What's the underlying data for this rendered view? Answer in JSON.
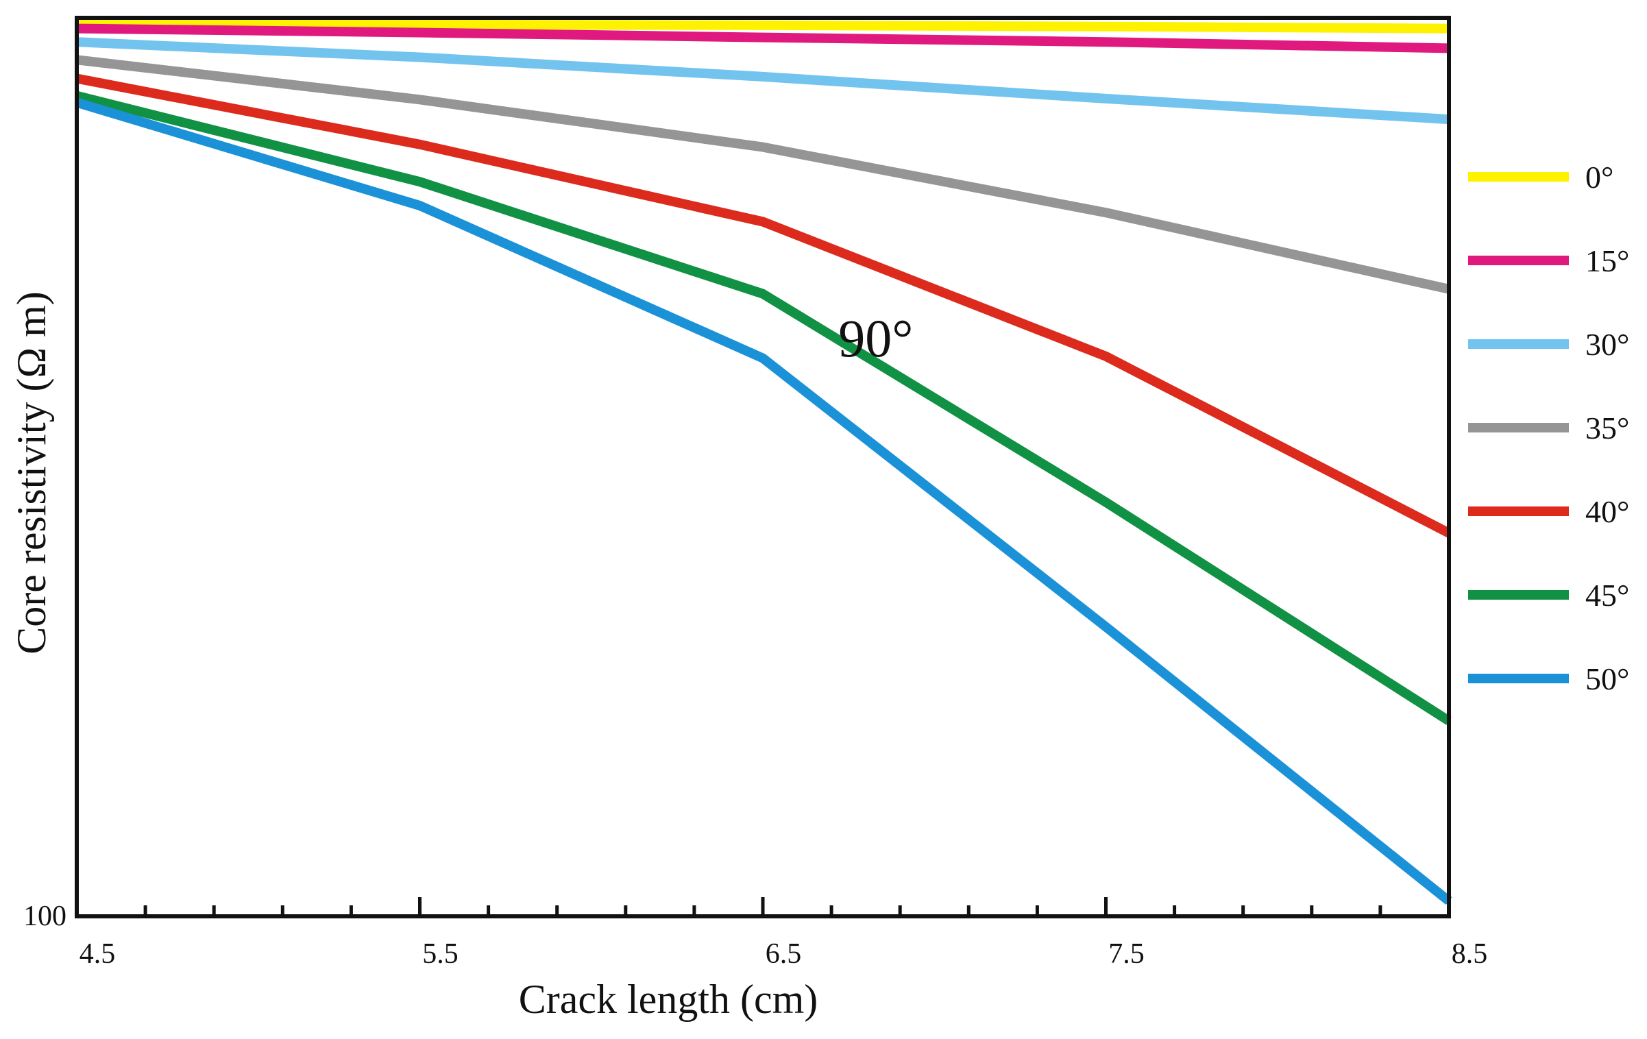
{
  "chart_data": {
    "type": "line",
    "title": "",
    "xlabel": "Crack length (cm)",
    "ylabel": "Core resistivity (Ω m)",
    "xlim": [
      4.5,
      8.5
    ],
    "ylim": [
      100,
      1000
    ],
    "xticks": [
      {
        "value": 4.5,
        "label": "4.5"
      },
      {
        "value": 5.5,
        "label": "5.5"
      },
      {
        "value": 6.5,
        "label": "6.5"
      },
      {
        "value": 7.5,
        "label": "7.5"
      },
      {
        "value": 8.5,
        "label": "8.5"
      }
    ],
    "minor_tick_step": 0.2,
    "yticks": [
      {
        "value": 100,
        "label": "100"
      }
    ],
    "grid": false,
    "legend": "right",
    "annotations": [
      {
        "text": "90°",
        "x": 6.9,
        "y": 420
      }
    ],
    "x": [
      4.5,
      5.5,
      6.5,
      7.5,
      8.5
    ],
    "series": [
      {
        "name": "0°",
        "color": "#fff200",
        "values": [
          985,
          983,
          981,
          978,
          973
        ]
      },
      {
        "name": "15°",
        "color": "#e0197f",
        "values": [
          973,
          963,
          951,
          940,
          925
        ]
      },
      {
        "name": "30°",
        "color": "#72c3ee",
        "values": [
          940,
          904,
          860,
          813,
          771
        ]
      },
      {
        "name": "35°",
        "color": "#959595",
        "values": [
          898,
          811,
          718,
          607,
          499
        ]
      },
      {
        "name": "40°",
        "color": "#dc2a1d",
        "values": [
          856,
          723,
          593,
          420,
          267
        ]
      },
      {
        "name": "45°",
        "color": "#119144",
        "values": [
          819,
          657,
          493,
          289,
          165
        ]
      },
      {
        "name": "50°",
        "color": "#1b92d8",
        "values": [
          805,
          618,
          418,
          210,
          104
        ]
      }
    ]
  }
}
